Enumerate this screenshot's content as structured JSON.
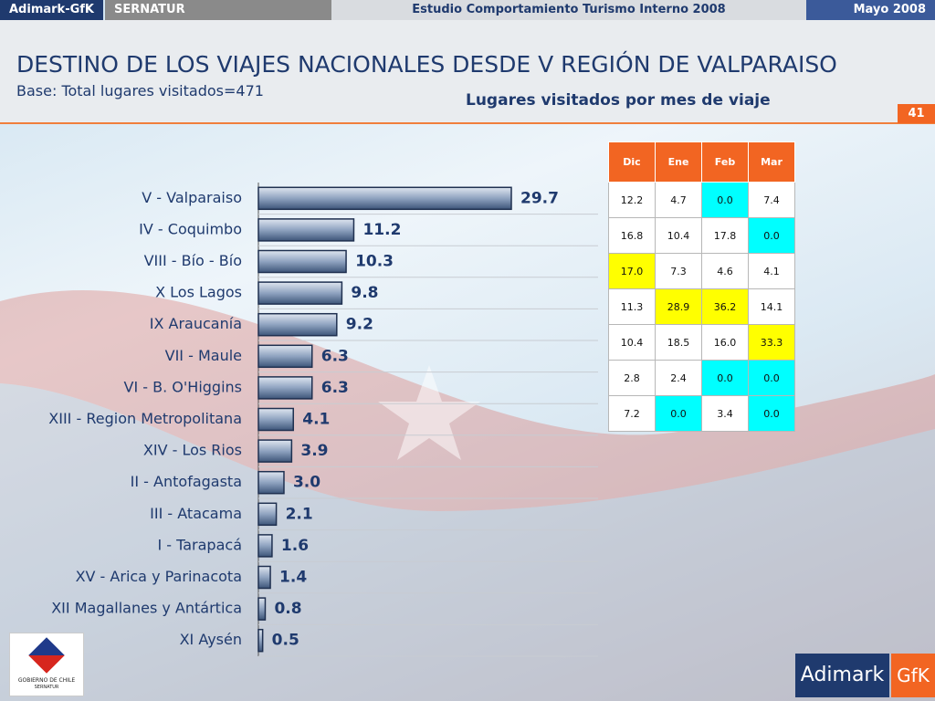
{
  "header": {
    "brand": "Adimark-GfK",
    "client": "SERNATUR",
    "study": "Estudio Comportamiento Turismo Interno 2008",
    "date": "Mayo 2008",
    "page": "41"
  },
  "chart_data": {
    "type": "bar",
    "orientation": "horizontal",
    "title": "DESTINO DE LOS VIAJES NACIONALES DESDE V REGIÓN DE VALPARAISO",
    "subtitle": "Base: Total lugares visitados=471",
    "categories": [
      "V - Valparaiso",
      "IV - Coquimbo",
      "VIII - Bío - Bío",
      "X Los Lagos",
      "IX Araucanía",
      "VII - Maule",
      "VI - B. O'Higgins",
      "XIII - Region Metropolitana",
      "XIV - Los Rios",
      "II - Antofagasta",
      "III - Atacama",
      "I - Tarapacá",
      "XV - Arica y Parinacota",
      "XII Magallanes y Antártica",
      "XI Aysén"
    ],
    "values": [
      29.7,
      11.2,
      10.3,
      9.8,
      9.2,
      6.3,
      6.3,
      4.1,
      3.9,
      3.0,
      2.1,
      1.6,
      1.4,
      0.8,
      0.5
    ],
    "value_labels": [
      "29.7",
      "11.2",
      "10.3",
      "9.8",
      "9.2",
      "6.3",
      "6.3",
      "4.1",
      "3.9",
      "3.0",
      "2.1",
      "1.6",
      "1.4",
      "0.8",
      "0.5"
    ],
    "color": "#5b7196",
    "grid": true
  },
  "table": {
    "title": "Lugares visitados por mes de viaje",
    "columns": [
      "Dic",
      "Ene",
      "Feb",
      "Mar"
    ],
    "rows": [
      [
        "12.2",
        "4.7",
        "0.0",
        "7.4"
      ],
      [
        "16.8",
        "10.4",
        "17.8",
        "0.0"
      ],
      [
        "17.0",
        "7.3",
        "4.6",
        "4.1"
      ],
      [
        "11.3",
        "28.9",
        "36.2",
        "14.1"
      ],
      [
        "10.4",
        "18.5",
        "16.0",
        "33.3"
      ],
      [
        "2.8",
        "2.4",
        "0.0",
        "0.0"
      ],
      [
        "7.2",
        "0.0",
        "3.4",
        "0.0"
      ]
    ],
    "fills": [
      [
        "#ffffff",
        "#ffffff",
        "#00ffff",
        "#ffffff"
      ],
      [
        "#ffffff",
        "#ffffff",
        "#ffffff",
        "#00ffff"
      ],
      [
        "#ffff00",
        "#ffffff",
        "#ffffff",
        "#ffffff"
      ],
      [
        "#ffffff",
        "#ffff00",
        "#ffff00",
        "#ffffff"
      ],
      [
        "#ffffff",
        "#ffffff",
        "#ffffff",
        "#ffff00"
      ],
      [
        "#ffffff",
        "#ffffff",
        "#00ffff",
        "#00ffff"
      ],
      [
        "#ffffff",
        "#00ffff",
        "#ffffff",
        "#00ffff"
      ]
    ]
  },
  "footer": {
    "gov": "GOBIERNO DE CHILE",
    "gov_sub": "SERNATUR",
    "logo_a": "Adimark",
    "logo_b": "GfK"
  }
}
